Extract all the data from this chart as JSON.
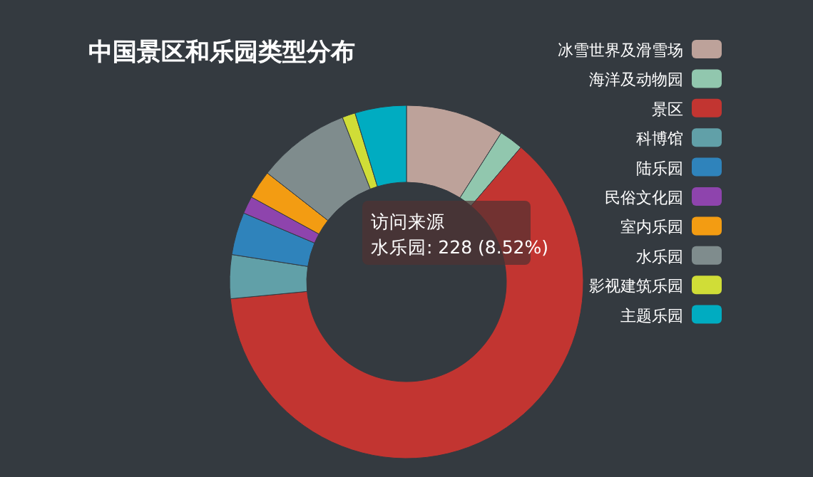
{
  "chart_data": {
    "type": "donut",
    "title": "中国景区和乐园类型分布",
    "legend_title": "访问来源",
    "categories": [
      "冰雪世界及滑雪场",
      "海洋及动物园",
      "景区",
      "科博馆",
      "陆乐园",
      "民俗文化园",
      "室内乐园",
      "水乐园",
      "影视建筑乐园",
      "主题乐园"
    ],
    "values": [
      9.0,
      2.2,
      62.28,
      4.0,
      3.9,
      1.6,
      2.6,
      8.52,
      1.2,
      4.7
    ],
    "colors": [
      "#bda29a",
      "#91c7ae",
      "#c23531",
      "#61a0a8",
      "#2f83bb",
      "#8e44ad",
      "#f39c12",
      "#7f8c8d",
      "#d0dd37",
      "#00acc1"
    ],
    "legend": "right",
    "annotations": [
      "水乐园: 228 (8.52%)"
    ]
  }
}
